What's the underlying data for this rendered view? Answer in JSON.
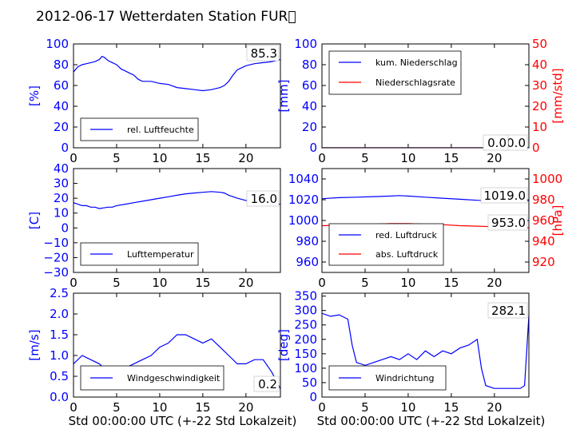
{
  "figure": {
    "title": "2012-06-17 Wetterdaten Station FUR\u0000",
    "colors": {
      "blue": "#0000ff",
      "red": "#ff0000",
      "black": "#000000"
    }
  },
  "chart_data": [
    {
      "id": "humidity",
      "type": "line",
      "x_ticks": [
        "0",
        "5",
        "10",
        "15",
        "20"
      ],
      "xlim": [
        0,
        24
      ],
      "ylim": [
        0,
        100
      ],
      "y_ticks": [
        "0",
        "20",
        "40",
        "60",
        "80",
        "100"
      ],
      "ylabel": "[%]",
      "legend": [
        "rel. Luftfeuchte"
      ],
      "legend_position": "lower-left",
      "current_value": "85.3",
      "series": [
        {
          "name": "rel. Luftfeuchte",
          "color": "#0000ff",
          "x": [
            0,
            0.5,
            1,
            1.5,
            2,
            2.5,
            3,
            3.3,
            3.6,
            4,
            4.5,
            5,
            5.5,
            6,
            6.5,
            7,
            7.5,
            8,
            9,
            10,
            11,
            12,
            13,
            14,
            15,
            16,
            17,
            17.5,
            18,
            18.5,
            19,
            20,
            21,
            22,
            23,
            24
          ],
          "y": [
            73,
            78,
            80,
            81,
            82,
            83,
            85,
            88,
            87,
            84,
            82,
            80,
            76,
            74,
            72,
            70,
            66,
            64,
            64,
            62,
            61,
            58,
            57,
            56,
            55,
            56,
            58,
            60,
            64,
            70,
            75,
            79,
            81,
            82,
            83,
            85
          ]
        }
      ]
    },
    {
      "id": "precipitation",
      "type": "line",
      "x_ticks": [
        "0",
        "5",
        "10",
        "15",
        "20"
      ],
      "xlim": [
        0,
        24
      ],
      "ylim": [
        0,
        100
      ],
      "y_ticks": [
        "0",
        "20",
        "40",
        "60",
        "80",
        "100"
      ],
      "ylabel": "[mm]",
      "ylim_right": [
        0,
        50
      ],
      "y_ticks_right": [
        "0",
        "10",
        "20",
        "30",
        "40",
        "50"
      ],
      "ylabel_right": "[mm/std]",
      "legend": [
        "kum. Niederschlag",
        "Niederschlagsrate"
      ],
      "legend_position": "upper-left",
      "current_value_1": "0.0",
      "current_value_2": "0.0",
      "series": [
        {
          "name": "kum. Niederschlag",
          "color": "#0000ff",
          "axis": "left",
          "x": [
            0,
            24
          ],
          "y": [
            0,
            0
          ]
        },
        {
          "name": "Niederschlagsrate",
          "color": "#ff0000",
          "axis": "right",
          "x": [
            0,
            24
          ],
          "y": [
            0,
            0
          ]
        }
      ]
    },
    {
      "id": "temperature",
      "type": "line",
      "x_ticks": [
        "0",
        "5",
        "10",
        "15",
        "20"
      ],
      "xlim": [
        0,
        24
      ],
      "ylim": [
        -30,
        40
      ],
      "y_ticks": [
        "−30",
        "−20",
        "−10",
        "0",
        "10",
        "20",
        "30",
        "40"
      ],
      "ylabel": "[C]",
      "legend": [
        "Lufttemperatur"
      ],
      "legend_position": "lower-left",
      "current_value": "16.0",
      "series": [
        {
          "name": "Lufttemperatur",
          "color": "#0000ff",
          "x": [
            0,
            0.5,
            1,
            1.5,
            2,
            2.5,
            3,
            3.5,
            4,
            4.5,
            5,
            6,
            7,
            8,
            9,
            10,
            11,
            12,
            13,
            14,
            15,
            16,
            17,
            17.5,
            18,
            19,
            20,
            21,
            22,
            23,
            24
          ],
          "y": [
            17,
            16,
            15,
            15,
            14,
            14,
            13,
            13.5,
            14,
            14,
            15,
            16,
            17,
            18,
            19,
            20,
            21,
            22,
            23,
            23.5,
            24,
            24.5,
            24,
            23.5,
            22,
            20,
            18.5,
            17.5,
            17,
            16.5,
            16
          ]
        }
      ]
    },
    {
      "id": "pressure",
      "type": "line",
      "x_ticks": [
        "0",
        "5",
        "10",
        "15",
        "20"
      ],
      "xlim": [
        0,
        24
      ],
      "ylim": [
        950,
        1050
      ],
      "y_ticks": [
        "960",
        "980",
        "1000",
        "1020",
        "1040"
      ],
      "ylim_right": [
        910,
        1010
      ],
      "y_ticks_right": [
        "920",
        "940",
        "960",
        "980",
        "1000"
      ],
      "ylabel_right": "[hPa]",
      "legend": [
        "red. Luftdruck",
        "abs. Luftdruck"
      ],
      "legend_position": "lower-left",
      "current_value_1": "1019.0",
      "current_value_2": "953.0",
      "series": [
        {
          "name": "red. Luftdruck",
          "color": "#0000ff",
          "axis": "left",
          "x": [
            0,
            2,
            4,
            6,
            8,
            9,
            10,
            12,
            14,
            16,
            18,
            20,
            22,
            24
          ],
          "y": [
            1021,
            1022,
            1022.5,
            1023,
            1023.5,
            1024,
            1023.5,
            1022.5,
            1021.5,
            1020.5,
            1019.5,
            1019,
            1019,
            1019
          ]
        },
        {
          "name": "abs. Luftdruck",
          "color": "#ff0000",
          "axis": "right",
          "x": [
            0,
            2,
            4,
            6,
            8,
            9,
            10,
            12,
            14,
            16,
            18,
            20,
            22,
            24
          ],
          "y": [
            955,
            955.5,
            956,
            956.5,
            957,
            957,
            957,
            956.5,
            956,
            955,
            954.5,
            954,
            953.5,
            953
          ]
        }
      ]
    },
    {
      "id": "windspeed",
      "type": "line",
      "x_ticks": [
        "0",
        "5",
        "10",
        "15",
        "20"
      ],
      "xlim": [
        0,
        24
      ],
      "ylim": [
        0,
        2.5
      ],
      "y_ticks": [
        "0.0",
        "0.5",
        "1.0",
        "1.5",
        "2.0",
        "2.5"
      ],
      "ylabel": "[m/s]",
      "xlabel": "Std 00:00:00 UTC (+-22 Std Lokalzeit)",
      "legend": [
        "Windgeschwindigkeit"
      ],
      "legend_position": "lower-left",
      "current_value": "0.2",
      "series": [
        {
          "name": "Windgeschwindigkeit",
          "color": "#0000ff",
          "x": [
            0,
            1,
            2,
            3,
            4,
            5,
            6,
            7,
            8,
            9,
            10,
            11,
            12,
            13,
            14,
            15,
            16,
            17,
            18,
            19,
            20,
            21,
            22,
            23,
            24
          ],
          "y": [
            0.8,
            1.0,
            0.9,
            0.8,
            0.6,
            0.5,
            0.7,
            0.8,
            0.9,
            1.0,
            1.2,
            1.3,
            1.5,
            1.5,
            1.4,
            1.3,
            1.4,
            1.2,
            1.0,
            0.8,
            0.8,
            0.9,
            0.9,
            0.6,
            0.2
          ]
        }
      ]
    },
    {
      "id": "winddirection",
      "type": "line",
      "x_ticks": [
        "0",
        "5",
        "10",
        "15",
        "20"
      ],
      "xlim": [
        0,
        24
      ],
      "ylim": [
        0,
        360
      ],
      "y_ticks": [
        "0",
        "50",
        "100",
        "150",
        "200",
        "250",
        "300",
        "350"
      ],
      "ylabel": "[deg]",
      "xlabel": "Std 00:00:00 UTC (+-22 Std Lokalzeit)",
      "legend": [
        "Windrichtung"
      ],
      "legend_position": "lower-left",
      "current_value": "282.1",
      "series": [
        {
          "name": "Windrichtung",
          "color": "#0000ff",
          "x": [
            0,
            1,
            2,
            3,
            3.5,
            4,
            5,
            6,
            7,
            8,
            9,
            10,
            11,
            12,
            13,
            14,
            15,
            16,
            17,
            18,
            18.5,
            19,
            20,
            21,
            22,
            23,
            23.5,
            24
          ],
          "y": [
            290,
            280,
            285,
            270,
            180,
            120,
            110,
            120,
            130,
            140,
            130,
            150,
            130,
            160,
            140,
            160,
            150,
            170,
            180,
            200,
            100,
            40,
            30,
            30,
            30,
            30,
            40,
            282
          ]
        }
      ]
    }
  ]
}
